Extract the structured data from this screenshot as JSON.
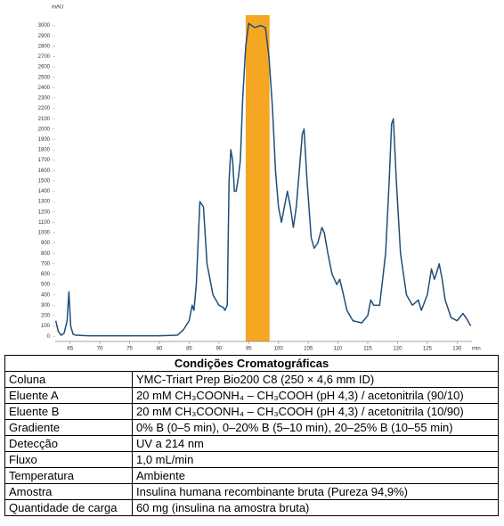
{
  "chart_data": {
    "type": "line",
    "y_label": "mAU",
    "x_label": "min",
    "x": [
      62.6,
      63,
      63.5,
      64,
      64.5,
      64.8,
      65.1,
      65.5,
      66,
      68,
      70,
      80,
      83,
      84,
      85,
      85.5,
      85.8,
      86.2,
      86.8,
      87.4,
      88,
      89,
      90,
      90.7,
      91,
      91.4,
      91.7,
      92,
      92.3,
      92.6,
      92.9,
      93.3,
      93.6,
      94,
      94.5,
      95,
      96,
      97,
      97.8,
      98.4,
      99,
      99.5,
      100,
      100.5,
      101,
      101.5,
      102,
      102.5,
      103,
      103.5,
      104,
      104.3,
      104.8,
      105.5,
      106,
      106.6,
      107.3,
      107.7,
      108.3,
      109,
      109.8,
      110.3,
      110.8,
      111.5,
      112.5,
      114,
      115,
      115.5,
      116,
      117,
      118,
      118.6,
      119,
      119.3,
      119.8,
      120.5,
      121.5,
      122.5,
      123.5,
      124,
      125,
      125.7,
      126.2,
      126.5,
      127,
      127.5,
      128,
      129,
      130,
      131,
      131.5,
      132.3
    ],
    "series": [
      {
        "color": "#1f4e79",
        "values": [
          150,
          50,
          10,
          30,
          150,
          430,
          100,
          20,
          10,
          5,
          5,
          5,
          10,
          60,
          150,
          300,
          250,
          500,
          1300,
          1250,
          700,
          400,
          300,
          280,
          250,
          300,
          1500,
          1800,
          1700,
          1400,
          1400,
          1550,
          1700,
          2300,
          2800,
          3020,
          2980,
          3000,
          2980,
          2700,
          2200,
          1600,
          1250,
          1100,
          1250,
          1400,
          1250,
          1050,
          1250,
          1600,
          1950,
          2000,
          1500,
          950,
          850,
          900,
          1050,
          1000,
          800,
          600,
          500,
          550,
          430,
          250,
          150,
          130,
          200,
          350,
          300,
          300,
          800,
          1500,
          2050,
          2100,
          1500,
          800,
          400,
          300,
          350,
          250,
          400,
          650,
          550,
          600,
          700,
          550,
          350,
          180,
          150,
          220,
          180,
          100
        ]
      }
    ],
    "highlight": [
      94.5,
      98.5
    ],
    "highlight_color": "#f5a623",
    "xlim": [
      62.5,
      132.5
    ],
    "ylim": [
      -50,
      3100
    ],
    "xticks": [
      65,
      70,
      75,
      80,
      85,
      90,
      95,
      100,
      105,
      110,
      115,
      120,
      125,
      130
    ],
    "yticks": [
      0,
      100,
      200,
      300,
      400,
      500,
      600,
      700,
      800,
      900,
      1000,
      1100,
      1200,
      1300,
      1400,
      1500,
      1600,
      1700,
      1800,
      1900,
      2000,
      2100,
      2200,
      2300,
      2400,
      2500,
      2600,
      2700,
      2800,
      2900,
      3000
    ]
  },
  "table": {
    "title": "Condições Cromatográficas",
    "rows": [
      [
        "Coluna",
        "YMC-Triart Prep Bio200 C8 (250 × 4,6 mm ID)"
      ],
      [
        "Eluente A",
        "20 mM CH₃COONH₄ – CH₃COOH (pH 4,3) / acetonitrila (90/10)"
      ],
      [
        "Eluente B",
        "20 mM CH₃COONH₄ – CH₃COOH (pH 4,3) / acetonitrila (10/90)"
      ],
      [
        "Gradiente",
        "0% B (0–5 min), 0–20% B (5–10 min), 20–25% B (10–55 min)"
      ],
      [
        "Detecção",
        "UV a 214 nm"
      ],
      [
        "Fluxo",
        "1,0 mL/min"
      ],
      [
        "Temperatura",
        "Ambiente"
      ],
      [
        "Amostra",
        "Insulina humana recombinante bruta (Pureza 94,9%)"
      ],
      [
        "Quantidade de carga",
        "60 mg (insulina na amostra bruta)"
      ]
    ]
  }
}
